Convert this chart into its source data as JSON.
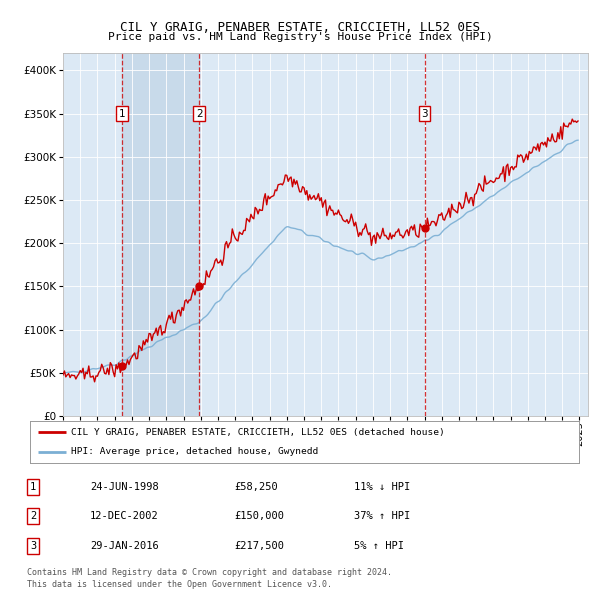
{
  "title1": "CIL Y GRAIG, PENABER ESTATE, CRICCIETH, LL52 0ES",
  "title2": "Price paid vs. HM Land Registry's House Price Index (HPI)",
  "legend_line1": "CIL Y GRAIG, PENABER ESTATE, CRICCIETH, LL52 0ES (detached house)",
  "legend_line2": "HPI: Average price, detached house, Gwynedd",
  "sale1_date": "24-JUN-1998",
  "sale1_price": 58250,
  "sale1_price_str": "£58,250",
  "sale1_pct": "11% ↓ HPI",
  "sale2_date": "12-DEC-2002",
  "sale2_price": 150000,
  "sale2_price_str": "£150,000",
  "sale2_pct": "37% ↑ HPI",
  "sale3_date": "29-JAN-2016",
  "sale3_price": 217500,
  "sale3_price_str": "£217,500",
  "sale3_pct": "5% ↑ HPI",
  "footer1": "Contains HM Land Registry data © Crown copyright and database right 2024.",
  "footer2": "This data is licensed under the Open Government Licence v3.0.",
  "red_color": "#cc0000",
  "blue_color": "#7bafd4",
  "bg_color": "#dce9f5",
  "shade_color": "#c8daea",
  "ylim_max": 420000,
  "yticks": [
    0,
    50000,
    100000,
    150000,
    200000,
    250000,
    300000,
    350000,
    400000
  ],
  "xstart_year": 1995,
  "xend_year": 2025
}
